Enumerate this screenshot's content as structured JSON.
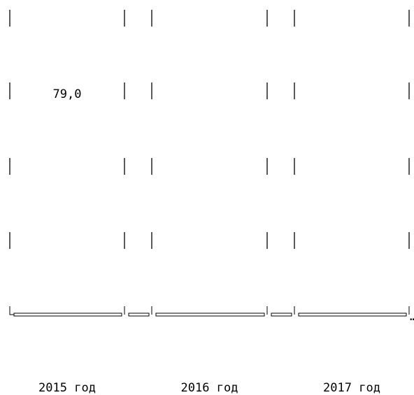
{
  "chart_data": {
    "type": "bar",
    "categories": [
      "2015 год",
      "2016 год",
      "2017 год"
    ],
    "values": [
      79.0,
      null,
      null
    ],
    "data_labels": [
      "79,0",
      "",
      ""
    ],
    "title": "",
    "xlabel": "",
    "ylabel": "",
    "grid": false,
    "legend": "none",
    "colors": {
      "stroke": "#000000",
      "background": "#ffffff"
    },
    "overflow_marker": "…"
  }
}
